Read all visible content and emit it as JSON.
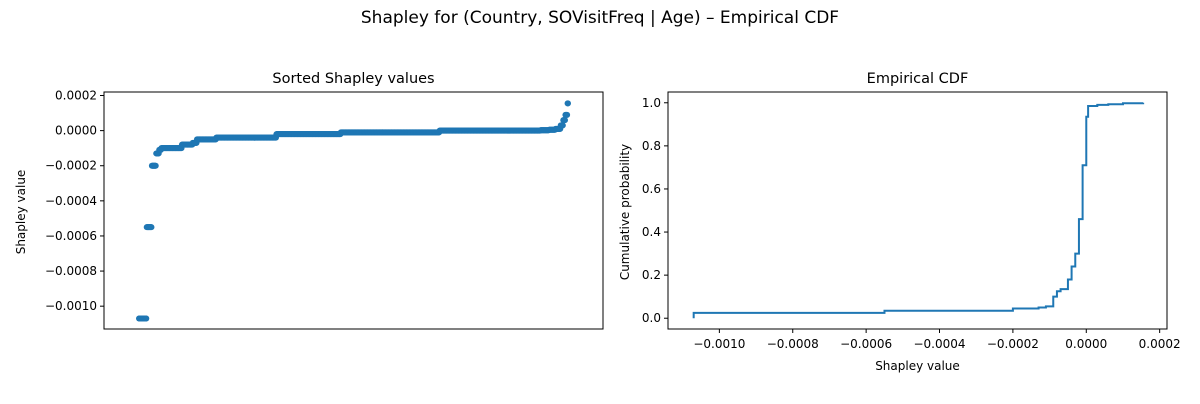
{
  "figure": {
    "title": "Shapley for (Country, SOVisitFreq | Age) – Empirical CDF"
  },
  "chart_data": [
    {
      "type": "scatter",
      "title": "Sorted Shapley values",
      "xlabel": "",
      "ylabel": "Shapley value",
      "ylim": [
        -0.00113,
        0.00022
      ],
      "yticks": [
        -0.001,
        -0.0008,
        -0.0006,
        -0.0004,
        -0.0002,
        0.0,
        0.0002
      ],
      "ytick_labels": [
        "−0.0010",
        "−0.0008",
        "−0.0006",
        "−0.0004",
        "−0.0002",
        "0.0000",
        "0.0002"
      ],
      "xticks_visible": false,
      "n_points": 1000,
      "color": "#1f77b4",
      "sorted_value_levels": [
        {
          "from": 0.0,
          "to": 0.018,
          "value": -0.00107
        },
        {
          "from": 0.018,
          "to": 0.03,
          "value": -0.00055
        },
        {
          "from": 0.03,
          "to": 0.04,
          "value": -0.0002
        },
        {
          "from": 0.04,
          "to": 0.047,
          "value": -0.00013
        },
        {
          "from": 0.047,
          "to": 0.052,
          "value": -0.00011
        },
        {
          "from": 0.052,
          "to": 0.1,
          "value": -0.0001
        },
        {
          "from": 0.1,
          "to": 0.125,
          "value": -8e-05
        },
        {
          "from": 0.125,
          "to": 0.135,
          "value": -7e-05
        },
        {
          "from": 0.135,
          "to": 0.18,
          "value": -5e-05
        },
        {
          "from": 0.18,
          "to": 0.32,
          "value": -4e-05
        },
        {
          "from": 0.32,
          "to": 0.47,
          "value": -2e-05
        },
        {
          "from": 0.47,
          "to": 0.7,
          "value": -1e-05
        },
        {
          "from": 0.7,
          "to": 0.935,
          "value": 0.0
        },
        {
          "from": 0.935,
          "to": 0.955,
          "value": 2e-06
        },
        {
          "from": 0.955,
          "to": 0.97,
          "value": 5e-06
        },
        {
          "from": 0.97,
          "to": 0.982,
          "value": 1e-05
        },
        {
          "from": 0.982,
          "to": 0.988,
          "value": 3e-05
        },
        {
          "from": 0.988,
          "to": 0.993,
          "value": 6e-05
        },
        {
          "from": 0.993,
          "to": 0.998,
          "value": 9e-05
        },
        {
          "from": 0.998,
          "to": 1.0,
          "value": 0.000155
        }
      ]
    },
    {
      "type": "line",
      "title": "Empirical CDF",
      "xlabel": "Shapley value",
      "ylabel": "Cumulative probability",
      "xlim": [
        -0.00114,
        0.00022
      ],
      "ylim": [
        -0.05,
        1.05
      ],
      "xticks": [
        -0.001,
        -0.0008,
        -0.0006,
        -0.0004,
        -0.0002,
        0.0,
        0.0002
      ],
      "xtick_labels": [
        "−0.0010",
        "−0.0008",
        "−0.0006",
        "−0.0004",
        "−0.0002",
        "0.0000",
        "0.0002"
      ],
      "yticks": [
        0.0,
        0.2,
        0.4,
        0.6,
        0.8,
        1.0
      ],
      "ytick_labels": [
        "0.0",
        "0.2",
        "0.4",
        "0.6",
        "0.8",
        "1.0"
      ],
      "color": "#1f77b4",
      "step_points": [
        {
          "x": -0.00107,
          "y": 0.0
        },
        {
          "x": -0.00107,
          "y": 0.025
        },
        {
          "x": -0.00055,
          "y": 0.025
        },
        {
          "x": -0.00055,
          "y": 0.035
        },
        {
          "x": -0.0002,
          "y": 0.035
        },
        {
          "x": -0.0002,
          "y": 0.045
        },
        {
          "x": -0.00013,
          "y": 0.045
        },
        {
          "x": -0.00013,
          "y": 0.05
        },
        {
          "x": -0.00011,
          "y": 0.05
        },
        {
          "x": -0.00011,
          "y": 0.055
        },
        {
          "x": -9e-05,
          "y": 0.055
        },
        {
          "x": -9e-05,
          "y": 0.1
        },
        {
          "x": -8e-05,
          "y": 0.1
        },
        {
          "x": -8e-05,
          "y": 0.125
        },
        {
          "x": -7e-05,
          "y": 0.125
        },
        {
          "x": -7e-05,
          "y": 0.135
        },
        {
          "x": -5e-05,
          "y": 0.135
        },
        {
          "x": -5e-05,
          "y": 0.18
        },
        {
          "x": -4e-05,
          "y": 0.18
        },
        {
          "x": -4e-05,
          "y": 0.24
        },
        {
          "x": -3e-05,
          "y": 0.24
        },
        {
          "x": -3e-05,
          "y": 0.3
        },
        {
          "x": -2e-05,
          "y": 0.3
        },
        {
          "x": -2e-05,
          "y": 0.46
        },
        {
          "x": -1e-05,
          "y": 0.46
        },
        {
          "x": -1e-05,
          "y": 0.71
        },
        {
          "x": 0.0,
          "y": 0.71
        },
        {
          "x": 0.0,
          "y": 0.935
        },
        {
          "x": 5e-06,
          "y": 0.935
        },
        {
          "x": 5e-06,
          "y": 0.985
        },
        {
          "x": 3e-05,
          "y": 0.985
        },
        {
          "x": 3e-05,
          "y": 0.99
        },
        {
          "x": 6e-05,
          "y": 0.99
        },
        {
          "x": 6e-05,
          "y": 0.993
        },
        {
          "x": 0.0001,
          "y": 0.993
        },
        {
          "x": 0.0001,
          "y": 0.998
        },
        {
          "x": 0.000155,
          "y": 0.998
        },
        {
          "x": 0.000155,
          "y": 1.0
        }
      ]
    }
  ]
}
